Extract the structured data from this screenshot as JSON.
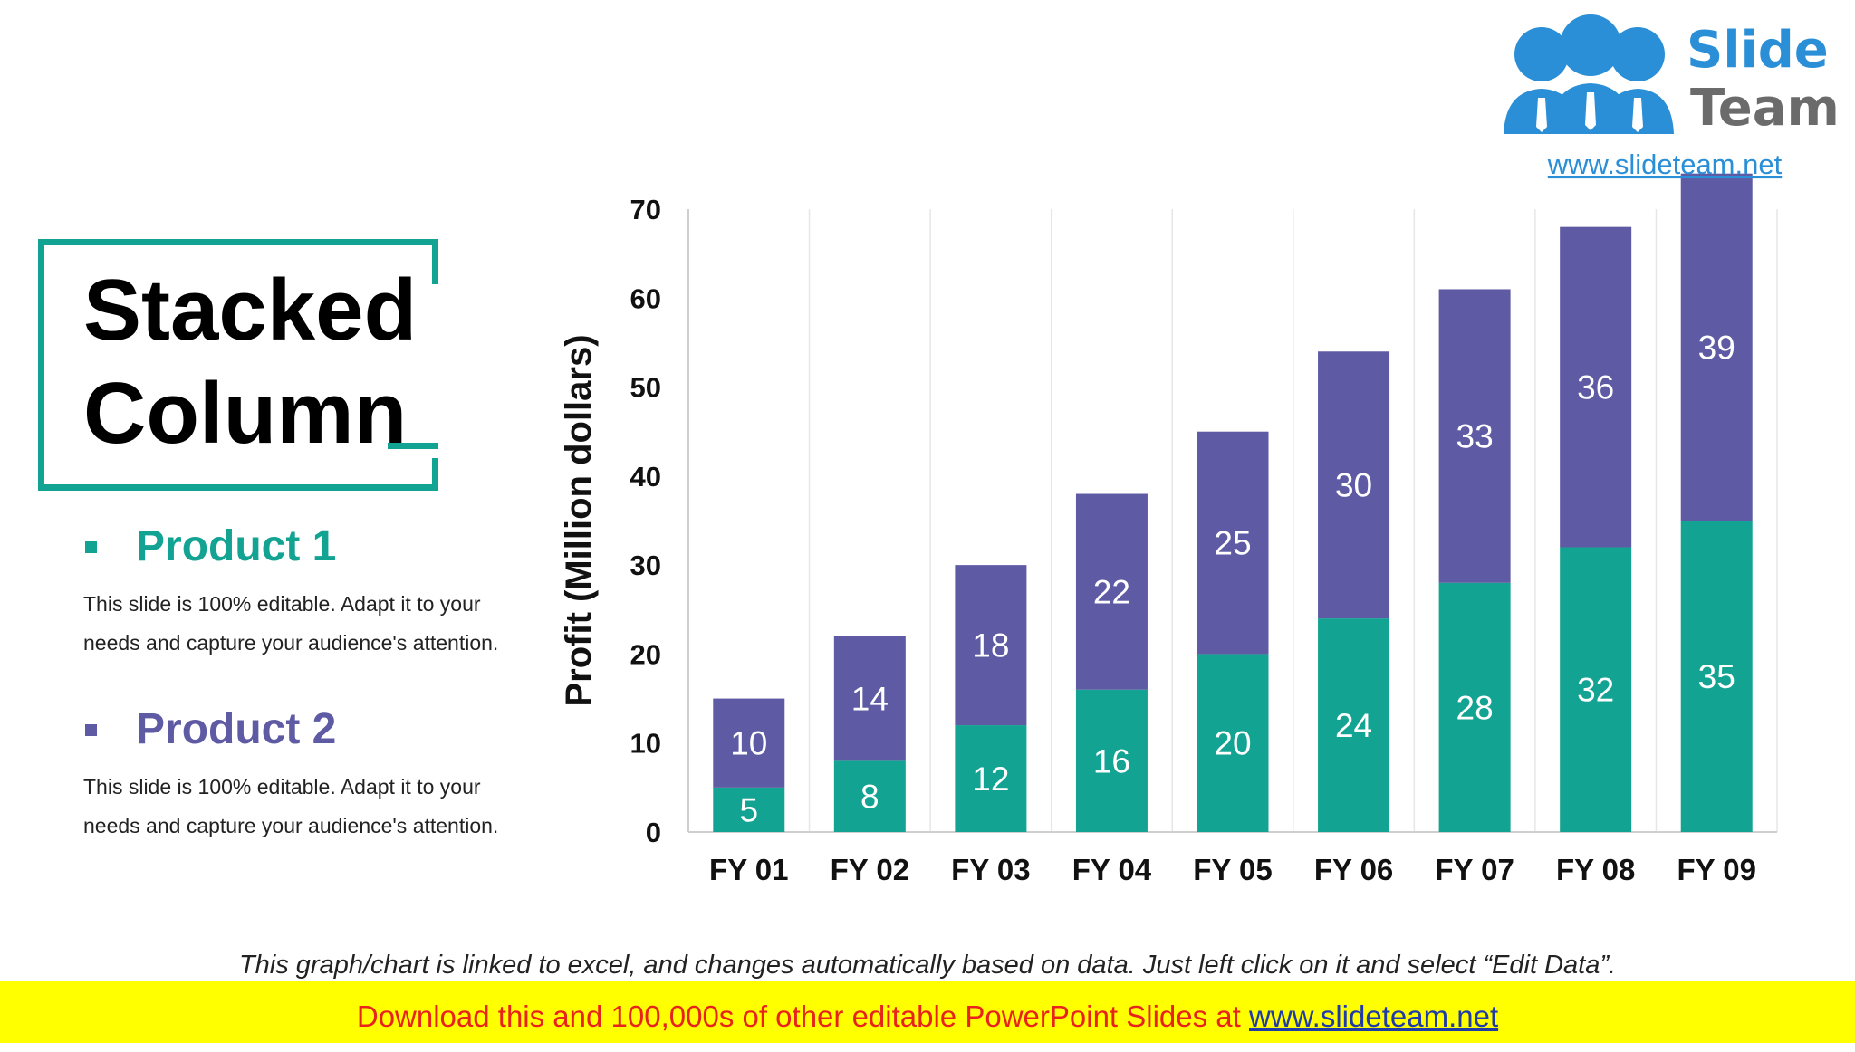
{
  "slide": {
    "title_line1": "Stacked",
    "title_line2": "Column",
    "footer_note": "This graph/chart is linked to excel, and changes automatically based on data. Just left click on it and select “Edit Data”.",
    "banner_text": "Download this and 100,000s of other editable PowerPoint Slides at ",
    "banner_link": "www.slideteam.net"
  },
  "legend": [
    {
      "name": "Product 1",
      "color": "#13a393",
      "description_line1": "This slide is 100% editable. Adapt it to your",
      "description_line2": "needs and capture your audience's attention."
    },
    {
      "name": "Product 2",
      "color": "#5e5aa3",
      "description_line1": "This slide is 100% editable. Adapt it to your",
      "description_line2": "needs and capture your audience's attention."
    }
  ],
  "logo": {
    "word1": "Slide",
    "word2": "Team",
    "url": "www.slideteam.net",
    "color": "#2a8fd6"
  },
  "chart_data": {
    "type": "bar",
    "stacked": true,
    "categories": [
      "FY 01",
      "FY 02",
      "FY 03",
      "FY 04",
      "FY 05",
      "FY 06",
      "FY 07",
      "FY 08",
      "FY 09"
    ],
    "series": [
      {
        "name": "Product 1",
        "color": "#13a393",
        "values": [
          5,
          8,
          12,
          16,
          20,
          24,
          28,
          32,
          35
        ]
      },
      {
        "name": "Product 2",
        "color": "#5e5aa3",
        "values": [
          10,
          14,
          18,
          22,
          25,
          30,
          33,
          36,
          39
        ]
      }
    ],
    "ylabel": "Profit  (Million dollars)",
    "xlabel": "",
    "ylim": [
      0,
      70
    ],
    "yticks": [
      0,
      10,
      20,
      30,
      40,
      50,
      60,
      70
    ],
    "grid": "vertical",
    "legend": "left-panel"
  }
}
